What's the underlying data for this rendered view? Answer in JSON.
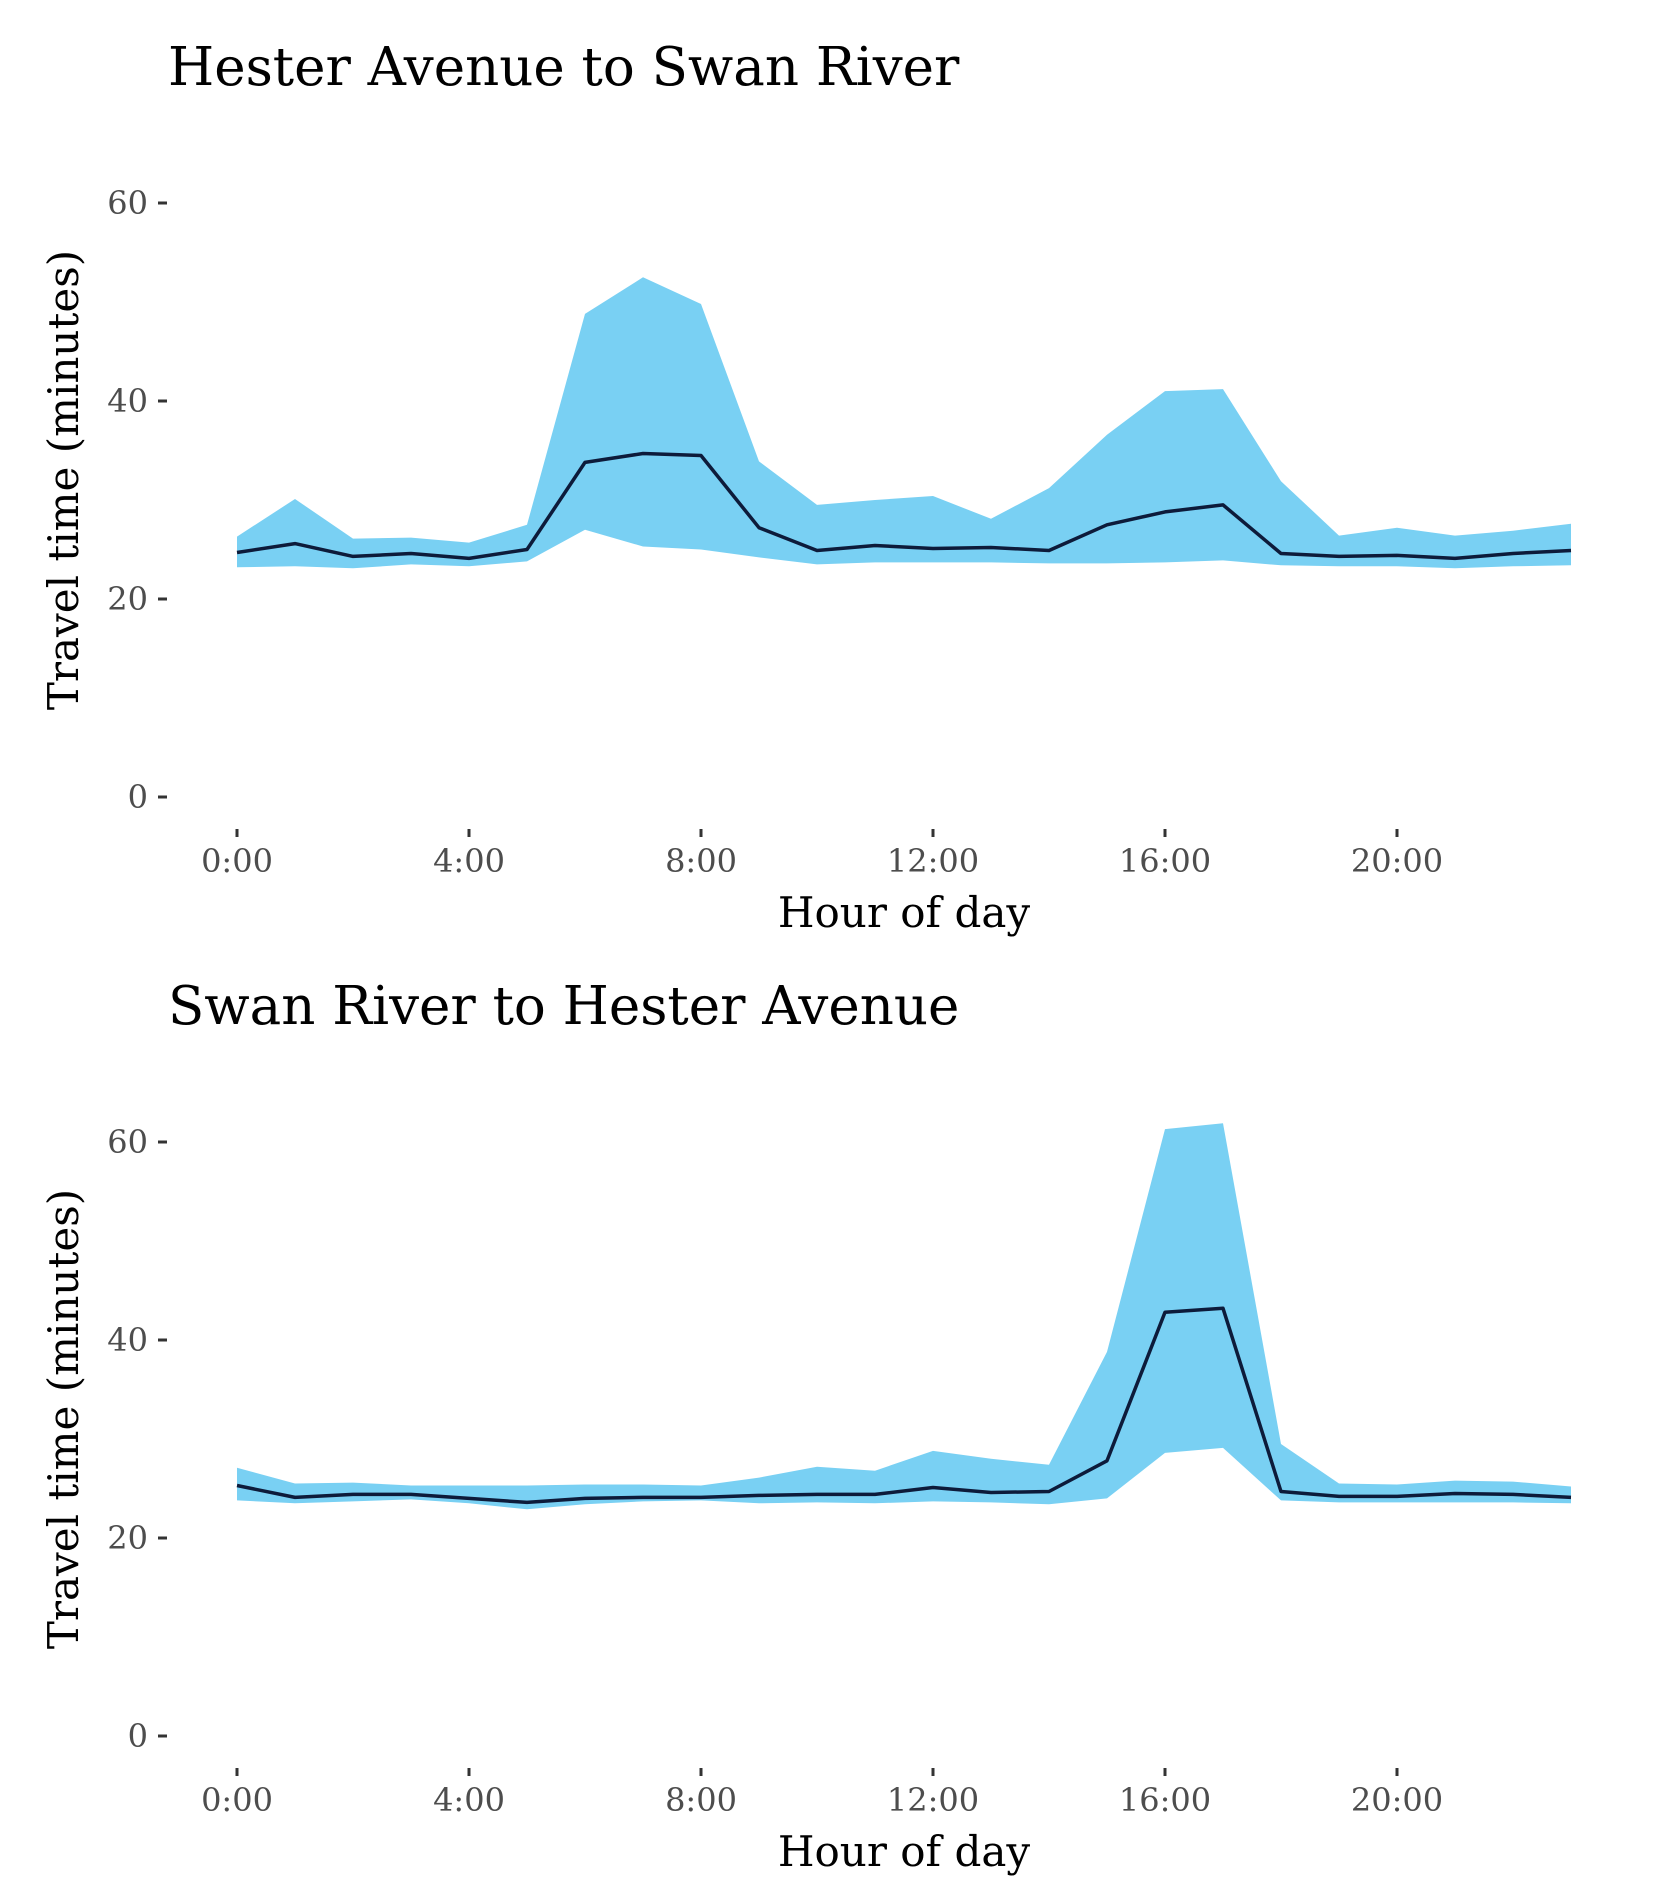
{
  "chart_data": [
    {
      "type": "area",
      "title": "Hester Avenue to Swan River",
      "xlabel": "Hour of day",
      "ylabel": "Travel time (minutes)",
      "xlim": [
        0,
        23
      ],
      "ylim": [
        0,
        60
      ],
      "x_ticks": [
        0,
        4,
        8,
        12,
        16,
        20
      ],
      "x_tick_labels": [
        "0:00",
        "4:00",
        "8:00",
        "12:00",
        "16:00",
        "20:00"
      ],
      "y_ticks": [
        0,
        20,
        40,
        60
      ],
      "y_tick_labels": [
        "0",
        "20",
        "40",
        "60"
      ],
      "grid": false,
      "band_color": "#79d0f3",
      "line_color": "#0d1b3a",
      "x": [
        0,
        1,
        2,
        3,
        4,
        5,
        6,
        7,
        8,
        9,
        10,
        11,
        12,
        13,
        14,
        15,
        16,
        17,
        18,
        19,
        20,
        21,
        22,
        23
      ],
      "series": [
        {
          "role": "lower",
          "values": [
            23.2,
            23.3,
            23.1,
            23.5,
            23.3,
            23.8,
            27.0,
            25.3,
            25.0,
            24.2,
            23.5,
            23.7,
            23.7,
            23.7,
            23.6,
            23.6,
            23.7,
            23.9,
            23.4,
            23.3,
            23.3,
            23.1,
            23.3,
            23.4
          ]
        },
        {
          "role": "median",
          "values": [
            24.7,
            25.6,
            24.3,
            24.6,
            24.1,
            25.0,
            33.8,
            34.7,
            34.5,
            27.2,
            24.9,
            25.4,
            25.1,
            25.2,
            24.9,
            27.5,
            28.8,
            29.5,
            24.6,
            24.3,
            24.4,
            24.1,
            24.6,
            24.9
          ]
        },
        {
          "role": "upper",
          "values": [
            26.3,
            30.1,
            26.1,
            26.2,
            25.7,
            27.5,
            48.8,
            52.5,
            49.8,
            33.9,
            29.5,
            30.0,
            30.4,
            28.1,
            31.2,
            36.6,
            41.0,
            41.2,
            31.9,
            26.4,
            27.2,
            26.4,
            26.9,
            27.6
          ]
        }
      ]
    },
    {
      "type": "area",
      "title": "Swan River to Hester Avenue",
      "xlabel": "Hour of day",
      "ylabel": "Travel time (minutes)",
      "xlim": [
        0,
        23
      ],
      "ylim": [
        0,
        60
      ],
      "x_ticks": [
        0,
        4,
        8,
        12,
        16,
        20
      ],
      "x_tick_labels": [
        "0:00",
        "4:00",
        "8:00",
        "12:00",
        "16:00",
        "20:00"
      ],
      "y_ticks": [
        0,
        20,
        40,
        60
      ],
      "y_tick_labels": [
        "0",
        "20",
        "40",
        "60"
      ],
      "grid": false,
      "band_color": "#79d0f3",
      "line_color": "#0d1b3a",
      "x": [
        0,
        1,
        2,
        3,
        4,
        5,
        6,
        7,
        8,
        9,
        10,
        11,
        12,
        13,
        14,
        15,
        16,
        17,
        18,
        19,
        20,
        21,
        22,
        23
      ],
      "series": [
        {
          "role": "lower",
          "values": [
            23.8,
            23.5,
            23.7,
            23.9,
            23.5,
            22.9,
            23.4,
            23.7,
            23.8,
            23.5,
            23.6,
            23.5,
            23.7,
            23.6,
            23.4,
            24.0,
            28.6,
            29.1,
            23.8,
            23.6,
            23.6,
            23.6,
            23.6,
            23.5
          ]
        },
        {
          "role": "median",
          "values": [
            25.3,
            24.1,
            24.4,
            24.4,
            24.0,
            23.6,
            24.0,
            24.1,
            24.1,
            24.3,
            24.4,
            24.4,
            25.1,
            24.6,
            24.7,
            27.8,
            42.8,
            43.2,
            24.7,
            24.2,
            24.2,
            24.5,
            24.4,
            24.1
          ]
        },
        {
          "role": "upper",
          "values": [
            27.1,
            25.5,
            25.6,
            25.3,
            25.3,
            25.3,
            25.4,
            25.4,
            25.3,
            26.1,
            27.2,
            26.8,
            28.8,
            28.0,
            27.4,
            38.8,
            61.3,
            61.9,
            29.5,
            25.5,
            25.4,
            25.8,
            25.7,
            25.2
          ]
        }
      ]
    }
  ]
}
